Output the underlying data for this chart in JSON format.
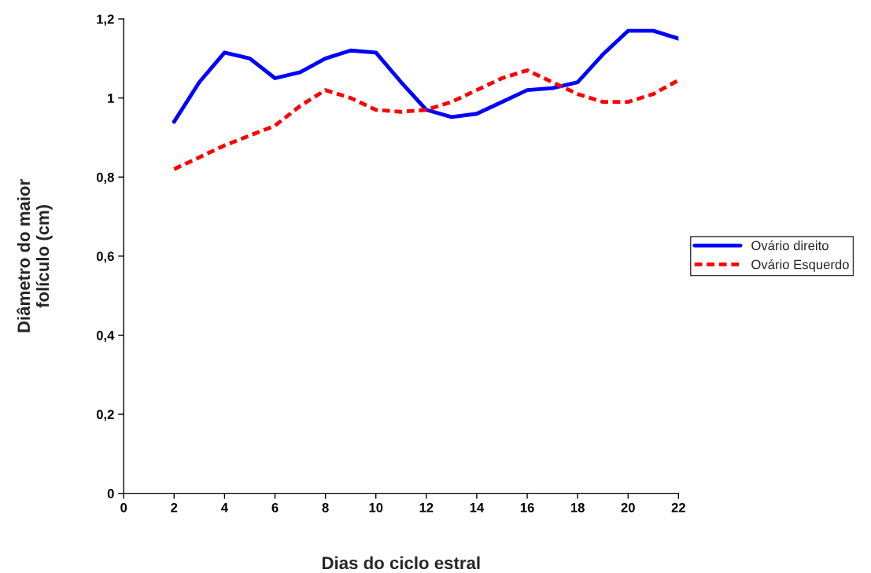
{
  "chart_data": {
    "type": "line",
    "xlabel": "Dias do ciclo estral",
    "ylabel": "Diâmetro do maior\nfolículo (cm)",
    "xlim": [
      0,
      22
    ],
    "xticks": [
      0,
      2,
      4,
      6,
      8,
      10,
      12,
      14,
      16,
      18,
      20,
      22
    ],
    "ylim": [
      0,
      1.2
    ],
    "yticks": [
      {
        "value": 0,
        "label": "0"
      },
      {
        "value": 0.2,
        "label": "0,2"
      },
      {
        "value": 0.4,
        "label": "0,4"
      },
      {
        "value": 0.6,
        "label": "0,6"
      },
      {
        "value": 0.8,
        "label": "0,8"
      },
      {
        "value": 1,
        "label": "1"
      },
      {
        "value": 1.2,
        "label": "1,2"
      }
    ],
    "grid": false,
    "legend": "right",
    "marker": "none",
    "series": [
      {
        "name": "Ovário direito",
        "color": "#0000ff",
        "line_style": "solid",
        "x": [
          2,
          3,
          4,
          5,
          6,
          7,
          8,
          9,
          10,
          11,
          12,
          13,
          14,
          15,
          16,
          17,
          18,
          19,
          20,
          21,
          22
        ],
        "values": [
          0.94,
          1.04,
          1.115,
          1.1,
          1.05,
          1.065,
          1.1,
          1.12,
          1.115,
          1.04,
          0.97,
          0.952,
          0.96,
          0.99,
          1.02,
          1.025,
          1.04,
          1.11,
          1.17,
          1.17,
          1.15
        ]
      },
      {
        "name": "Ovário Esquerdo",
        "color": "#ff0000",
        "line_style": "dashed",
        "x": [
          2,
          4,
          6,
          7,
          8,
          9,
          10,
          11,
          12,
          13,
          14,
          15,
          16,
          17,
          18,
          19,
          20,
          21,
          22
        ],
        "values": [
          0.82,
          0.88,
          0.93,
          0.98,
          1.02,
          1.0,
          0.97,
          0.965,
          0.97,
          0.99,
          1.02,
          1.05,
          1.07,
          1.04,
          1.01,
          0.99,
          0.99,
          1.01,
          1.045
        ]
      }
    ]
  }
}
